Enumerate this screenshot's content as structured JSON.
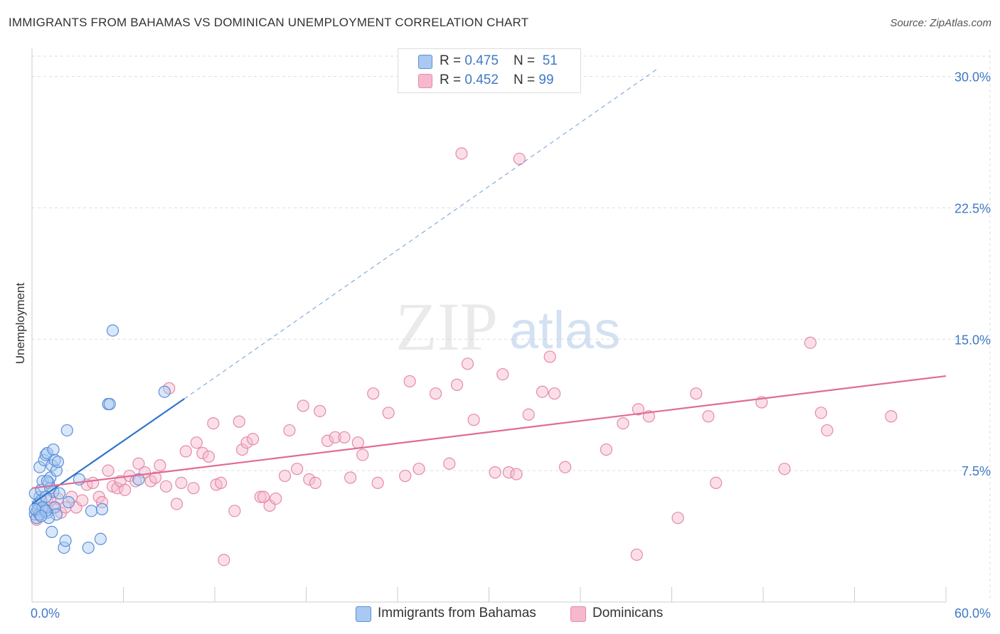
{
  "header": {
    "title": "IMMIGRANTS FROM BAHAMAS VS DOMINICAN UNEMPLOYMENT CORRELATION CHART",
    "source": "Source: ZipAtlas.com"
  },
  "legend": {
    "rows": [
      {
        "r_label": "R = ",
        "r_value": "0.475",
        "n_label": "N = ",
        "n_value": "51"
      },
      {
        "r_label": "R = ",
        "r_value": "0.452",
        "n_label": "N = ",
        "n_value": "99"
      }
    ]
  },
  "bottom_legend": {
    "series1": "Immigrants from Bahamas",
    "series2": "Dominicans"
  },
  "watermark": {
    "zip": "ZIP",
    "atlas": "atlas"
  },
  "colors": {
    "blue_fill": "#a9c9f2",
    "blue_stroke": "#5b8fd6",
    "blue_line": "#2f74c8",
    "pink_fill": "#f6b8cc",
    "pink_stroke": "#e48aa8",
    "pink_line": "#e06b97",
    "axis_label": "#3f79c4",
    "grid": "#dddddd"
  },
  "chart_data": {
    "type": "scatter",
    "title": "IMMIGRANTS FROM BAHAMAS VS DOMINICAN UNEMPLOYMENT CORRELATION CHART",
    "xlabel": "",
    "ylabel": "Unemployment",
    "xlim": [
      0,
      60
    ],
    "ylim": [
      0,
      31.2
    ],
    "x_tick_labels": [
      {
        "value": 0,
        "label": "0.0%"
      },
      {
        "value": 60,
        "label": "60.0%"
      }
    ],
    "y_tick_labels": [
      {
        "value": 7.5,
        "label": "7.5%"
      },
      {
        "value": 15,
        "label": "15.0%"
      },
      {
        "value": 22.5,
        "label": "22.5%"
      },
      {
        "value": 30,
        "label": "30.0%"
      }
    ],
    "series": [
      {
        "name": "Immigrants from Bahamas",
        "R": 0.475,
        "N": 51,
        "trend": {
          "x0": 0,
          "y0": 5.6,
          "x1": 10,
          "y1": 11.6,
          "dash_to_x": 41,
          "dash_to_y": 30.4
        },
        "points": [
          [
            0.2,
            5.0
          ],
          [
            0.3,
            5.2
          ],
          [
            0.4,
            5.6
          ],
          [
            0.5,
            6.0
          ],
          [
            0.2,
            6.2
          ],
          [
            0.6,
            6.4
          ],
          [
            0.5,
            7.7
          ],
          [
            0.7,
            6.9
          ],
          [
            0.8,
            8.1
          ],
          [
            0.9,
            8.4
          ],
          [
            1.0,
            8.5
          ],
          [
            1.1,
            6.8
          ],
          [
            1.2,
            7.1
          ],
          [
            1.3,
            7.8
          ],
          [
            1.4,
            6.3
          ],
          [
            1.5,
            5.4
          ],
          [
            1.6,
            5.0
          ],
          [
            1.0,
            5.1
          ],
          [
            0.8,
            5.3
          ],
          [
            1.2,
            6.5
          ],
          [
            1.4,
            8.7
          ],
          [
            1.5,
            8.1
          ],
          [
            1.6,
            7.5
          ],
          [
            1.7,
            8.0
          ],
          [
            1.8,
            6.2
          ],
          [
            0.3,
            4.8
          ],
          [
            0.4,
            5.3
          ],
          [
            0.6,
            5.8
          ],
          [
            0.9,
            6.0
          ],
          [
            1.1,
            4.8
          ],
          [
            1.3,
            4.0
          ],
          [
            2.4,
            5.7
          ],
          [
            2.1,
            3.1
          ],
          [
            2.2,
            3.5
          ],
          [
            2.3,
            9.8
          ],
          [
            3.1,
            7.0
          ],
          [
            3.7,
            3.1
          ],
          [
            3.9,
            5.2
          ],
          [
            4.5,
            3.6
          ],
          [
            4.6,
            5.3
          ],
          [
            5.0,
            11.3
          ],
          [
            5.1,
            11.3
          ],
          [
            5.3,
            15.5
          ],
          [
            7.0,
            7.0
          ],
          [
            8.7,
            12.0
          ],
          [
            0.5,
            5.0
          ],
          [
            0.7,
            5.4
          ],
          [
            1.0,
            6.9
          ],
          [
            0.2,
            5.3
          ],
          [
            0.9,
            5.2
          ],
          [
            0.6,
            4.9
          ]
        ]
      },
      {
        "name": "Dominicans",
        "R": 0.452,
        "N": 99,
        "trend": {
          "x0": 0,
          "y0": 6.5,
          "x1": 60,
          "y1": 12.9
        },
        "points": [
          [
            0.3,
            4.7
          ],
          [
            0.6,
            5.3
          ],
          [
            1.0,
            5.4
          ],
          [
            1.4,
            5.4
          ],
          [
            1.7,
            5.9
          ],
          [
            1.9,
            5.1
          ],
          [
            2.2,
            5.4
          ],
          [
            2.6,
            6.0
          ],
          [
            2.9,
            5.4
          ],
          [
            3.3,
            5.8
          ],
          [
            3.6,
            6.7
          ],
          [
            4.0,
            6.8
          ],
          [
            4.4,
            6.0
          ],
          [
            4.6,
            5.7
          ],
          [
            5.0,
            7.5
          ],
          [
            5.3,
            6.6
          ],
          [
            5.6,
            6.5
          ],
          [
            5.8,
            6.9
          ],
          [
            6.1,
            6.4
          ],
          [
            6.4,
            7.2
          ],
          [
            6.8,
            6.9
          ],
          [
            7.0,
            7.9
          ],
          [
            7.4,
            7.4
          ],
          [
            7.8,
            6.9
          ],
          [
            8.1,
            7.1
          ],
          [
            8.4,
            7.8
          ],
          [
            8.8,
            6.6
          ],
          [
            9.5,
            5.6
          ],
          [
            9.8,
            6.8
          ],
          [
            10.1,
            8.6
          ],
          [
            10.6,
            6.5
          ],
          [
            10.8,
            9.1
          ],
          [
            11.2,
            8.5
          ],
          [
            11.6,
            8.3
          ],
          [
            11.9,
            10.2
          ],
          [
            12.1,
            6.7
          ],
          [
            12.4,
            6.8
          ],
          [
            13.3,
            5.2
          ],
          [
            13.6,
            10.3
          ],
          [
            13.8,
            8.7
          ],
          [
            14.1,
            9.1
          ],
          [
            14.5,
            9.3
          ],
          [
            15.0,
            6.0
          ],
          [
            15.2,
            6.0
          ],
          [
            15.6,
            5.5
          ],
          [
            16.0,
            5.9
          ],
          [
            16.6,
            7.2
          ],
          [
            16.9,
            9.8
          ],
          [
            17.4,
            7.6
          ],
          [
            17.8,
            11.2
          ],
          [
            18.2,
            7.0
          ],
          [
            18.6,
            6.8
          ],
          [
            18.9,
            10.9
          ],
          [
            19.4,
            9.2
          ],
          [
            19.9,
            9.4
          ],
          [
            20.5,
            9.4
          ],
          [
            20.9,
            7.1
          ],
          [
            21.4,
            9.1
          ],
          [
            21.7,
            8.4
          ],
          [
            22.4,
            11.9
          ],
          [
            22.7,
            6.8
          ],
          [
            23.4,
            10.8
          ],
          [
            24.5,
            7.2
          ],
          [
            24.8,
            12.6
          ],
          [
            25.4,
            7.6
          ],
          [
            26.5,
            11.9
          ],
          [
            27.4,
            7.9
          ],
          [
            27.9,
            12.4
          ],
          [
            28.6,
            13.6
          ],
          [
            29.0,
            10.4
          ],
          [
            30.4,
            7.4
          ],
          [
            30.9,
            13.0
          ],
          [
            31.3,
            7.4
          ],
          [
            31.8,
            7.3
          ],
          [
            32.6,
            10.7
          ],
          [
            33.5,
            12.0
          ],
          [
            34.0,
            14.0
          ],
          [
            34.3,
            11.9
          ],
          [
            35.0,
            7.7
          ],
          [
            37.7,
            8.7
          ],
          [
            38.8,
            10.2
          ],
          [
            39.8,
            11.0
          ],
          [
            40.5,
            10.6
          ],
          [
            42.4,
            4.8
          ],
          [
            43.6,
            11.9
          ],
          [
            44.4,
            10.6
          ],
          [
            44.9,
            6.8
          ],
          [
            47.9,
            11.4
          ],
          [
            49.4,
            7.6
          ],
          [
            51.1,
            14.8
          ],
          [
            51.8,
            10.8
          ],
          [
            52.2,
            9.8
          ],
          [
            56.4,
            10.6
          ],
          [
            28.2,
            25.6
          ],
          [
            32.0,
            25.3
          ],
          [
            39.7,
            2.7
          ],
          [
            12.6,
            2.4
          ],
          [
            9.0,
            12.2
          ],
          [
            1.2,
            5.8
          ]
        ]
      }
    ]
  }
}
